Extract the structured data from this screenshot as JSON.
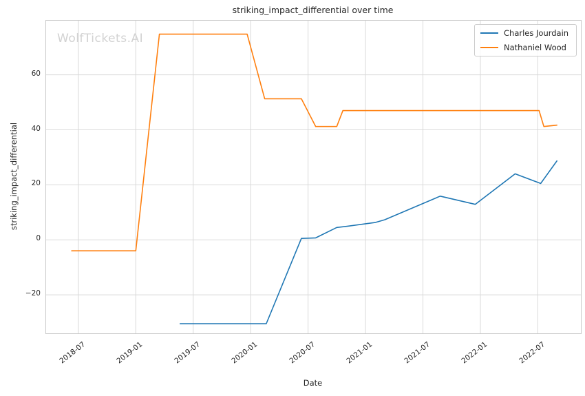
{
  "watermark": "WolfTickets.AI",
  "chart_data": {
    "type": "line",
    "title": "striking_impact_differential over time",
    "xlabel": "Date",
    "ylabel": "striking_impact_differential",
    "grid": true,
    "legend_position": "upper right",
    "xlim": [
      "2018-03-20",
      "2022-11-16"
    ],
    "ylim": [
      -34,
      79.7
    ],
    "xticks": [
      "2018-07",
      "2019-01",
      "2019-07",
      "2020-01",
      "2020-07",
      "2021-01",
      "2021-07",
      "2022-01",
      "2022-07"
    ],
    "yticks": {
      "values": [
        -20,
        0,
        20,
        40,
        60
      ],
      "labels": [
        "−20",
        "0",
        "20",
        "40",
        "60"
      ]
    },
    "colors": {
      "grid": "#d9d9d9",
      "spine": "#c9c9c9",
      "text": "#262626"
    },
    "series": [
      {
        "name": "Charles Jourdain",
        "color": "#1f77b4",
        "points": [
          {
            "date": "2019-05-20",
            "value": -30.5
          },
          {
            "date": "2020-02-20",
            "value": -30.5
          },
          {
            "date": "2020-06-10",
            "value": 0.5
          },
          {
            "date": "2020-07-25",
            "value": 0.7
          },
          {
            "date": "2020-10-01",
            "value": 4.5
          },
          {
            "date": "2020-11-01",
            "value": 4.9
          },
          {
            "date": "2021-02-01",
            "value": 6.3
          },
          {
            "date": "2021-03-01",
            "value": 7.3
          },
          {
            "date": "2021-08-25",
            "value": 15.9
          },
          {
            "date": "2021-12-15",
            "value": 12.9
          },
          {
            "date": "2022-04-20",
            "value": 24.0
          },
          {
            "date": "2022-07-10",
            "value": 20.5
          },
          {
            "date": "2022-09-01",
            "value": 28.7
          }
        ]
      },
      {
        "name": "Nathaniel Wood",
        "color": "#ff7f0e",
        "points": [
          {
            "date": "2018-06-10",
            "value": -4.0
          },
          {
            "date": "2019-01-01",
            "value": -4.0
          },
          {
            "date": "2019-03-15",
            "value": 74.8
          },
          {
            "date": "2019-12-20",
            "value": 74.8
          },
          {
            "date": "2020-02-15",
            "value": 51.3
          },
          {
            "date": "2020-06-10",
            "value": 51.3
          },
          {
            "date": "2020-07-25",
            "value": 41.2
          },
          {
            "date": "2020-10-01",
            "value": 41.2
          },
          {
            "date": "2020-10-20",
            "value": 47.0
          },
          {
            "date": "2022-07-05",
            "value": 47.0
          },
          {
            "date": "2022-07-20",
            "value": 41.2
          },
          {
            "date": "2022-09-01",
            "value": 41.7
          }
        ]
      }
    ]
  }
}
